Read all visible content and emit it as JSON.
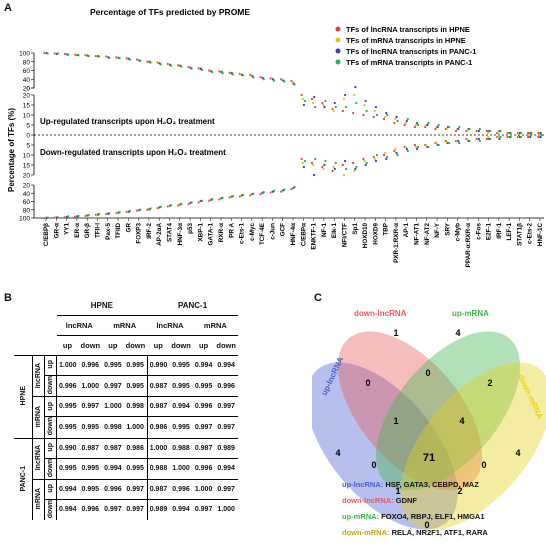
{
  "panels": {
    "a": "A",
    "b": "B",
    "c": "C"
  },
  "chart_data": {
    "type": "scatter",
    "title": "Percentage of TFs predicted by PROME",
    "ylabel": "Percentage of TFs (%)",
    "up_label": "Up-regulated transcripts upon H₂O₂ treatment",
    "down_label": "Down-regulated transcripts upon H₂O₂ treatment",
    "legend": [
      {
        "name": "TFs of lncRNA transcripts in HPNE",
        "color": "#e8413c"
      },
      {
        "name": "TFs of mRNA transcripts in HPNE",
        "color": "#e8c21a"
      },
      {
        "name": "TFs of lncRNA transcripts in PANC-1",
        "color": "#2f3fd6"
      },
      {
        "name": "TFs of mRNA transcripts in PANC-1",
        "color": "#22b34a"
      }
    ],
    "y_upper_ticks": [
      "100",
      "80",
      "60",
      "40",
      "20",
      "0"
    ],
    "y_mid_ticks": [
      "20",
      "15",
      "10",
      "5",
      "0",
      "5",
      "10",
      "15",
      "20"
    ],
    "y_lower_ticks": [
      "20",
      "40",
      "60",
      "80",
      "100"
    ],
    "categories": [
      "C/EBPβ",
      "GR-α",
      "YY1",
      "ER-α",
      "GR-β",
      "TFII-I",
      "Pax-5",
      "TFIID",
      "GR",
      "FOXP3",
      "IRF-2",
      "AP-2αA",
      "STAT4",
      "HNF-3α",
      "p53",
      "XBP-1",
      "GATA-1",
      "RXR-α",
      "PR A",
      "c-Ets-1",
      "c-Myc",
      "TCF-4E",
      "c-Jun",
      "GCF",
      "HNF-4α",
      "C/EBPα",
      "ENKTF-1",
      "NF-1",
      "Elk-1",
      "NFI/CTF",
      "Sp1",
      "HOXD10",
      "HOXD9",
      "TBP",
      "PXR-1:RXR-α",
      "AP-1",
      "NF-AT1",
      "NF-AT2",
      "NF-Y",
      "SRY",
      "c-Myb",
      "PPAR-α:RXR-α",
      "c-Fos",
      "E2F-1",
      "IRF-1",
      "LEF-1",
      "STAT1β",
      "c-Ets-2",
      "HNF-1C"
    ],
    "series": [
      {
        "name": "TFs of lncRNA transcripts in HPNE",
        "up": [
          100,
          99,
          98,
          96,
          95,
          93,
          92,
          90,
          88,
          85,
          80,
          78,
          75,
          72,
          68,
          65,
          60,
          58,
          55,
          52,
          50,
          45,
          42,
          40,
          36,
          20,
          18,
          16,
          13,
          12,
          11,
          10,
          9,
          8,
          6,
          5,
          4,
          4,
          3,
          3,
          2,
          2,
          2,
          2,
          1,
          1,
          1,
          1,
          1
        ],
        "down": [
          100,
          99,
          98,
          97,
          95,
          92,
          90,
          88,
          85,
          82,
          80,
          76,
          72,
          70,
          66,
          62,
          58,
          55,
          50,
          48,
          45,
          42,
          38,
          36,
          30,
          12,
          14,
          16,
          18,
          15,
          14,
          12,
          11,
          10,
          8,
          6,
          5,
          5,
          4,
          3,
          3,
          2,
          2,
          2,
          1,
          1,
          1,
          1,
          1
        ]
      },
      {
        "name": "TFs of mRNA transcripts in HPNE",
        "up": [
          99,
          98,
          97,
          96,
          94,
          92,
          91,
          89,
          86,
          84,
          79,
          77,
          74,
          70,
          67,
          63,
          59,
          56,
          53,
          51,
          48,
          44,
          41,
          38,
          34,
          18,
          16,
          15,
          12,
          18,
          20,
          15,
          12,
          9,
          8,
          6,
          5,
          5,
          4,
          3,
          3,
          2,
          2,
          1,
          1,
          1,
          1,
          0,
          0
        ],
        "down": [
          99,
          98,
          97,
          96,
          94,
          91,
          89,
          87,
          84,
          81,
          78,
          75,
          71,
          68,
          64,
          60,
          57,
          53,
          49,
          46,
          43,
          40,
          37,
          34,
          28,
          14,
          15,
          17,
          16,
          20,
          18,
          13,
          12,
          9,
          7,
          6,
          6,
          5,
          4,
          4,
          3,
          2,
          2,
          1,
          1,
          1,
          1,
          0,
          0
        ]
      },
      {
        "name": "TFs of lncRNA transcripts in PANC-1",
        "up": [
          100,
          98,
          97,
          95,
          94,
          93,
          90,
          89,
          87,
          83,
          80,
          76,
          73,
          71,
          66,
          64,
          58,
          57,
          54,
          50,
          47,
          43,
          40,
          37,
          30,
          15,
          19,
          14,
          16,
          20,
          22,
          17,
          14,
          11,
          9,
          7,
          6,
          5,
          4,
          4,
          3,
          3,
          2,
          2,
          2,
          1,
          1,
          1,
          1
        ],
        "down": [
          100,
          99,
          97,
          96,
          94,
          92,
          90,
          87,
          85,
          81,
          79,
          74,
          70,
          67,
          63,
          59,
          56,
          52,
          48,
          45,
          42,
          39,
          36,
          33,
          27,
          16,
          20,
          15,
          17,
          13,
          17,
          15,
          13,
          12,
          9,
          7,
          7,
          6,
          5,
          4,
          3,
          3,
          2,
          2,
          2,
          1,
          1,
          1,
          1
        ]
      },
      {
        "name": "TFs of mRNA transcripts in PANC-1",
        "up": [
          99,
          99,
          96,
          95,
          93,
          92,
          89,
          88,
          85,
          82,
          78,
          74,
          71,
          69,
          64,
          61,
          56,
          54,
          51,
          49,
          44,
          40,
          37,
          35,
          28,
          17,
          14,
          17,
          14,
          14,
          16,
          12,
          10,
          10,
          7,
          8,
          5,
          6,
          5,
          4,
          4,
          3,
          3,
          2,
          2,
          1,
          1,
          1,
          0
        ],
        "down": [
          99,
          98,
          96,
          95,
          93,
          90,
          88,
          86,
          83,
          80,
          77,
          73,
          69,
          66,
          62,
          58,
          54,
          51,
          47,
          44,
          41,
          37,
          34,
          31,
          25,
          13,
          12,
          13,
          14,
          17,
          16,
          14,
          10,
          11,
          10,
          8,
          6,
          6,
          5,
          4,
          4,
          3,
          3,
          2,
          1,
          1,
          1,
          0,
          0
        ]
      }
    ],
    "y_upper_range": [
      20,
      100
    ],
    "y_mid_range": [
      -20,
      20
    ],
    "y_lower_range": [
      20,
      100
    ]
  },
  "table": {
    "group_headers": [
      "HPNE",
      "PANC-1"
    ],
    "sub_headers": [
      "lncRNA",
      "mRNA",
      "lncRNA",
      "mRNA"
    ],
    "dir_headers": [
      "up",
      "down",
      "up",
      "down",
      "up",
      "down",
      "up",
      "down"
    ],
    "row_groups": [
      "HPNE",
      "PANC-1"
    ],
    "row_types": [
      "lncRNA",
      "mRNA",
      "lncRNA",
      "mRNA"
    ],
    "rows": [
      {
        "dir": "up",
        "values": [
          "1.000",
          "0.996",
          "0.995",
          "0.995",
          "0.990",
          "0.995",
          "0.994",
          "0.994"
        ]
      },
      {
        "dir": "down",
        "values": [
          "0.996",
          "1.000",
          "0.997",
          "0.995",
          "0.987",
          "0.995",
          "0.995",
          "0.996"
        ]
      },
      {
        "dir": "up",
        "values": [
          "0.995",
          "0.997",
          "1.000",
          "0.998",
          "0.987",
          "0.994",
          "0.996",
          "0.997"
        ]
      },
      {
        "dir": "down",
        "values": [
          "0.995",
          "0.995",
          "0.998",
          "1.000",
          "0.986",
          "0.995",
          "0.997",
          "0.997"
        ]
      },
      {
        "dir": "up",
        "values": [
          "0.990",
          "0.987",
          "0.987",
          "0.986",
          "1.000",
          "0.988",
          "0.987",
          "0.989"
        ]
      },
      {
        "dir": "down",
        "values": [
          "0.995",
          "0.995",
          "0.994",
          "0.995",
          "0.988",
          "1.000",
          "0.996",
          "0.994"
        ]
      },
      {
        "dir": "up",
        "values": [
          "0.994",
          "0.995",
          "0.996",
          "0.997",
          "0.987",
          "0.996",
          "1.000",
          "0.997"
        ]
      },
      {
        "dir": "down",
        "values": [
          "0.994",
          "0.996",
          "0.997",
          "0.997",
          "0.989",
          "0.994",
          "0.997",
          "1.000"
        ]
      }
    ]
  },
  "venn": {
    "sets": [
      {
        "label": "up-lncRNA",
        "color": "#4a5fd0"
      },
      {
        "label": "down-lncRNA",
        "color": "#e85a5a"
      },
      {
        "label": "up-mRNA",
        "color": "#3cb64a"
      },
      {
        "label": "down-mRNA",
        "color": "#e6d31a"
      }
    ],
    "counts": {
      "only_up_lnc": "4",
      "only_down_lnc": "1",
      "only_up_m": "4",
      "only_down_m": "4",
      "ul_dl": "0",
      "dl_um": "0",
      "um_dm": "2",
      "ul_dm": "0",
      "ul_dl_um": "1",
      "dl_um_dm": "4",
      "ul_dl_dm": "0",
      "ul_um_dm": "1",
      "all": "71",
      "ul_um": "0",
      "dl_dm": "2",
      "dl_dm_2": "0"
    },
    "genes": [
      {
        "set": "up-lncRNA:",
        "list": " HSF, GATA3, CEBPD, MAZ",
        "color": "#4a5fd0"
      },
      {
        "set": "down-lncRNA:",
        "list": " GDNF",
        "color": "#e85a5a"
      },
      {
        "set": "up-mRNA:",
        "list": " FOXO4, RBPJ, ELF1, HMGA1",
        "color": "#3cb64a"
      },
      {
        "set": "down-mRNA:",
        "list": " RELA, NR2F1, ATF1, RARA",
        "color": "#c9a800"
      }
    ]
  }
}
